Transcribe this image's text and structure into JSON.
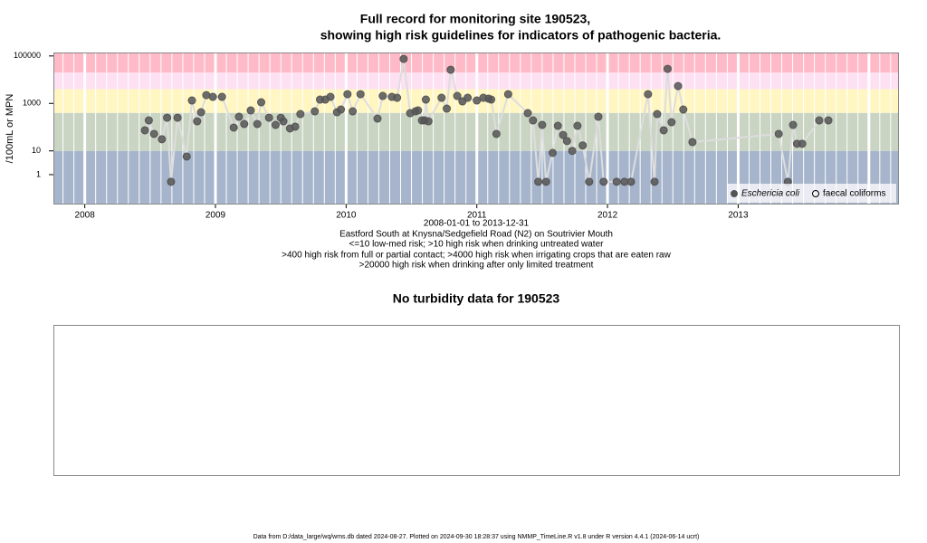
{
  "chart_data": [
    {
      "type": "line",
      "title": [
        "Full record for monitoring site 190523,",
        "showing high risk guidelines for indicators of pathogenic bacteria."
      ],
      "xlabel": [
        "2008-01-01 to 2013-12-31",
        "Eastford South at Knysna/Sedgefield Road (N2) on Soutrivier Mouth",
        "<=10 low-med risk; >10 high risk when drinking untreated water",
        ">400 high risk from full or partial contact; >4000 high risk when irrigating crops that are eaten raw",
        ">20000 high risk when drinking after only limited treatment"
      ],
      "ylabel": "/100mL or MPN",
      "log_y": true,
      "grid": true,
      "legend": "lower right",
      "xlim": [
        2007.76,
        2014.23
      ],
      "xticks": [
        2008,
        2009,
        2010,
        2011,
        2012,
        2013
      ],
      "ylim": [
        0.055,
        140000
      ],
      "yticks": [
        1,
        10,
        1000,
        100000
      ],
      "thresholds": [
        10,
        400,
        4000,
        20000
      ],
      "band_colors": [
        "#a6b5cc",
        "#c9d4c3",
        "#fff6c2",
        "#fde1f3",
        "#ffbac8"
      ],
      "line_color": "#dddddd",
      "series": [
        {
          "name": "Eschericia coli",
          "color": "#555555",
          "filled": true,
          "x": [
            2008.46,
            2008.49,
            2008.53,
            2008.59,
            2008.63,
            2008.66,
            2008.71,
            2008.78,
            2008.82,
            2008.86,
            2008.89,
            2008.93,
            2008.98,
            2009.05,
            2009.14,
            2009.18,
            2009.22,
            2009.27,
            2009.32,
            2009.35,
            2009.41,
            2009.46,
            2009.5,
            2009.52,
            2009.57,
            2009.61,
            2009.65,
            2009.76,
            2009.8,
            2009.84,
            2009.88,
            2009.93,
            2009.96,
            2010.01,
            2010.05,
            2010.11,
            2010.24,
            2010.28,
            2010.35,
            2010.39,
            2010.44,
            2010.49,
            2010.53,
            2010.55,
            2010.58,
            2010.6,
            2010.61,
            2010.63,
            2010.73,
            2010.77,
            2010.8,
            2010.85,
            2010.89,
            2010.93,
            2011.0,
            2011.05,
            2011.09,
            2011.11,
            2011.15,
            2011.24,
            2011.39,
            2011.43,
            2011.47,
            2011.5,
            2011.53,
            2011.58,
            2011.62,
            2011.66,
            2011.69,
            2011.73,
            2011.77,
            2011.81,
            2011.86,
            2011.93,
            2011.97,
            2012.07,
            2012.13,
            2012.18,
            2012.31,
            2012.36,
            2012.38,
            2012.43,
            2012.46,
            2012.49,
            2012.54,
            2012.58,
            2012.65,
            2013.31,
            2013.38,
            2013.42,
            2013.45,
            2013.49,
            2013.62,
            2013.69
          ],
          "values": [
            74,
            193,
            52,
            31,
            250,
            0.5,
            250,
            5.8,
            1330,
            177,
            425,
            2240,
            1890,
            1890,
            96,
            274,
            136,
            507,
            136,
            1116,
            250,
            124,
            250,
            177,
            88,
            105,
            357,
            464,
            1452,
            1452,
            1890,
            425,
            553,
            2450,
            464,
            2450,
            230,
            2060,
            1890,
            1730,
            75200,
            390,
            464,
            507,
            193,
            193,
            1452,
            177,
            1730,
            604,
            26200,
            2060,
            1220,
            1730,
            1330,
            1730,
            1585,
            1452,
            52,
            2450,
            390,
            193,
            0.5,
            124,
            0.5,
            8.2,
            114,
            47,
            26,
            10,
            114,
            17,
            0.5,
            274,
            0.5,
            0.5,
            0.5,
            0.5,
            2450,
            0.5,
            357,
            74,
            28600,
            162,
            5400,
            553,
            23.5,
            52,
            0.5,
            124,
            20,
            20,
            193,
            193
          ]
        },
        {
          "name": "faecal coliforms",
          "color": "#000000",
          "filled": false,
          "x": [],
          "values": []
        }
      ]
    },
    {
      "type": "empty",
      "title": "No turbidity data for 190523"
    }
  ],
  "footer": "Data from D:/data_large/wq/wms.db dated 2024-08-27. Plotted on 2024-09-30 18:28:37 using NMMP_TimeLine.R v1.8 under R version 4.4.1 (2024-06-14 ucrt)"
}
